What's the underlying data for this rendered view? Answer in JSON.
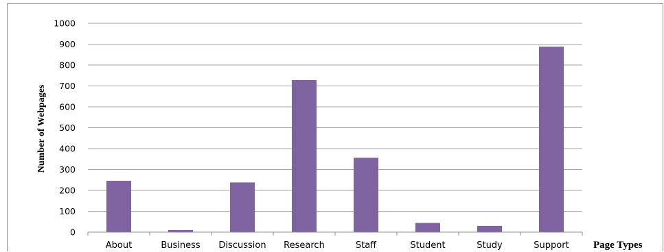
{
  "chart_data": {
    "type": "bar",
    "categories": [
      "About",
      "Business",
      "Discussion",
      "Research",
      "Staff",
      "Student",
      "Study",
      "Support"
    ],
    "values": [
      246,
      10,
      238,
      728,
      356,
      44,
      30,
      888
    ],
    "xlabel": "Page Types",
    "ylabel": "Number of Webpages",
    "ylim": [
      0,
      1000
    ],
    "yticks": [
      "0",
      "100",
      "200",
      "300",
      "400",
      "500",
      "600",
      "700",
      "800",
      "900",
      "1000"
    ],
    "grid": true,
    "bar_color": "#8064a2",
    "legend": "none"
  }
}
